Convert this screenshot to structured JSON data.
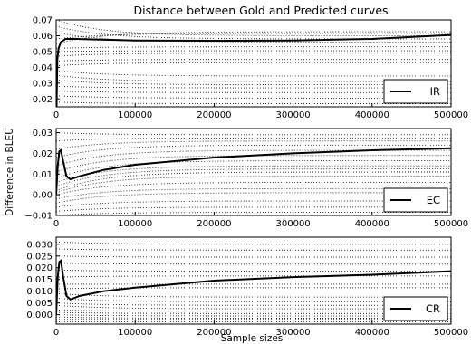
{
  "figure": {
    "title": "Distance between Gold and Predicted curves",
    "xlabel": "Sample sizes",
    "ylabel": "Difference in BLEU"
  },
  "chart_data": [
    {
      "type": "line",
      "legend": "IR",
      "legend_position": "bottom-right",
      "xlim": [
        0,
        500000
      ],
      "ylim": [
        0.015,
        0.07
      ],
      "x_ticks": [
        "0",
        "100000",
        "200000",
        "300000",
        "400000",
        "500000"
      ],
      "y_ticks": [
        "0.02",
        "0.03",
        "0.04",
        "0.05",
        "0.06",
        "0.07"
      ],
      "series": [
        {
          "style": "solid",
          "points": [
            [
              0,
              0.0
            ],
            [
              1500,
              0.045
            ],
            [
              3000,
              0.052
            ],
            [
              6000,
              0.056
            ],
            [
              12000,
              0.058
            ],
            [
              25000,
              0.058
            ],
            [
              60000,
              0.0575
            ],
            [
              100000,
              0.057
            ],
            [
              200000,
              0.0568
            ],
            [
              300000,
              0.057
            ],
            [
              400000,
              0.058
            ],
            [
              500000,
              0.0605
            ]
          ]
        }
      ],
      "dotted_curves": [
        {
          "start": 0.07,
          "end": 0.06
        },
        {
          "start": 0.066,
          "end": 0.058
        },
        {
          "start": 0.062,
          "end": 0.056
        },
        {
          "start": 0.058,
          "end": 0.0615
        },
        {
          "start": 0.055,
          "end": 0.0625
        },
        {
          "start": 0.052,
          "end": 0.053
        },
        {
          "start": 0.05,
          "end": 0.0505
        },
        {
          "start": 0.047,
          "end": 0.049
        },
        {
          "start": 0.044,
          "end": 0.045
        },
        {
          "start": 0.041,
          "end": 0.043
        },
        {
          "start": 0.038,
          "end": 0.0345
        },
        {
          "start": 0.035,
          "end": 0.031
        },
        {
          "start": 0.032,
          "end": 0.029
        },
        {
          "start": 0.028,
          "end": 0.027
        },
        {
          "start": 0.025,
          "end": 0.024
        },
        {
          "start": 0.022,
          "end": 0.0205
        },
        {
          "start": 0.018,
          "end": 0.017
        }
      ]
    },
    {
      "type": "line",
      "legend": "EC",
      "legend_position": "bottom-right",
      "xlim": [
        0,
        500000
      ],
      "ylim": [
        -0.01,
        0.032
      ],
      "x_ticks": [
        "0",
        "100000",
        "200000",
        "300000",
        "400000",
        "500000"
      ],
      "y_ticks": [
        "−0.01",
        "0.00",
        "0.01",
        "0.02",
        "0.03"
      ],
      "series": [
        {
          "style": "solid",
          "points": [
            [
              0,
              0.0
            ],
            [
              2000,
              0.014
            ],
            [
              4000,
              0.021
            ],
            [
              6000,
              0.0215
            ],
            [
              9000,
              0.016
            ],
            [
              13000,
              0.009
            ],
            [
              18000,
              0.0075
            ],
            [
              30000,
              0.009
            ],
            [
              60000,
              0.012
            ],
            [
              100000,
              0.0145
            ],
            [
              200000,
              0.018
            ],
            [
              300000,
              0.02
            ],
            [
              400000,
              0.0215
            ],
            [
              500000,
              0.0225
            ]
          ]
        }
      ],
      "dotted_curves": [
        {
          "start": 0.03,
          "end": 0.029
        },
        {
          "start": 0.026,
          "end": 0.0275
        },
        {
          "start": 0.022,
          "end": 0.026
        },
        {
          "start": 0.018,
          "end": 0.024
        },
        {
          "start": 0.014,
          "end": 0.0215
        },
        {
          "start": 0.011,
          "end": 0.019
        },
        {
          "start": 0.008,
          "end": 0.0165
        },
        {
          "start": 0.006,
          "end": 0.014
        },
        {
          "start": 0.004,
          "end": 0.0125
        },
        {
          "start": 0.002,
          "end": 0.011
        },
        {
          "start": 0.001,
          "end": 0.009
        },
        {
          "start": 0.0,
          "end": 0.006
        },
        {
          "start": -0.002,
          "end": 0.003
        },
        {
          "start": -0.004,
          "end": 0.001
        },
        {
          "start": -0.006,
          "end": -0.003
        },
        {
          "start": -0.008,
          "end": -0.006
        },
        {
          "start": -0.01,
          "end": -0.0085
        }
      ]
    },
    {
      "type": "line",
      "legend": "CR",
      "legend_position": "bottom-right",
      "xlim": [
        0,
        500000
      ],
      "ylim": [
        -0.004,
        0.033
      ],
      "x_ticks": [
        "0",
        "100000",
        "200000",
        "300000",
        "400000",
        "500000"
      ],
      "y_ticks": [
        "0.000",
        "0.005",
        "0.010",
        "0.015",
        "0.020",
        "0.025",
        "0.030"
      ],
      "series": [
        {
          "style": "solid",
          "points": [
            [
              0,
              0.0
            ],
            [
              2000,
              0.016
            ],
            [
              4000,
              0.0225
            ],
            [
              6000,
              0.023
            ],
            [
              9000,
              0.016
            ],
            [
              13000,
              0.008
            ],
            [
              18000,
              0.0065
            ],
            [
              30000,
              0.008
            ],
            [
              60000,
              0.01
            ],
            [
              100000,
              0.0115
            ],
            [
              200000,
              0.0145
            ],
            [
              300000,
              0.016
            ],
            [
              400000,
              0.017
            ],
            [
              500000,
              0.0185
            ]
          ]
        }
      ],
      "dotted_curves": [
        {
          "start": 0.031,
          "end": 0.03
        },
        {
          "start": 0.028,
          "end": 0.0275
        },
        {
          "start": 0.025,
          "end": 0.0245
        },
        {
          "start": 0.022,
          "end": 0.0215
        },
        {
          "start": 0.019,
          "end": 0.0185
        },
        {
          "start": 0.016,
          "end": 0.0165
        },
        {
          "start": 0.013,
          "end": 0.013
        },
        {
          "start": 0.011,
          "end": 0.0115
        },
        {
          "start": 0.009,
          "end": 0.0075
        },
        {
          "start": 0.007,
          "end": 0.0055
        },
        {
          "start": 0.005,
          "end": 0.004
        },
        {
          "start": 0.004,
          "end": 0.0025
        },
        {
          "start": 0.002,
          "end": 0.0015
        },
        {
          "start": 0.001,
          "end": 0.0005
        },
        {
          "start": 0.0,
          "end": -0.0005
        },
        {
          "start": -0.001,
          "end": -0.0015
        },
        {
          "start": -0.002,
          "end": -0.002
        },
        {
          "start": -0.003,
          "end": -0.003
        }
      ]
    }
  ]
}
